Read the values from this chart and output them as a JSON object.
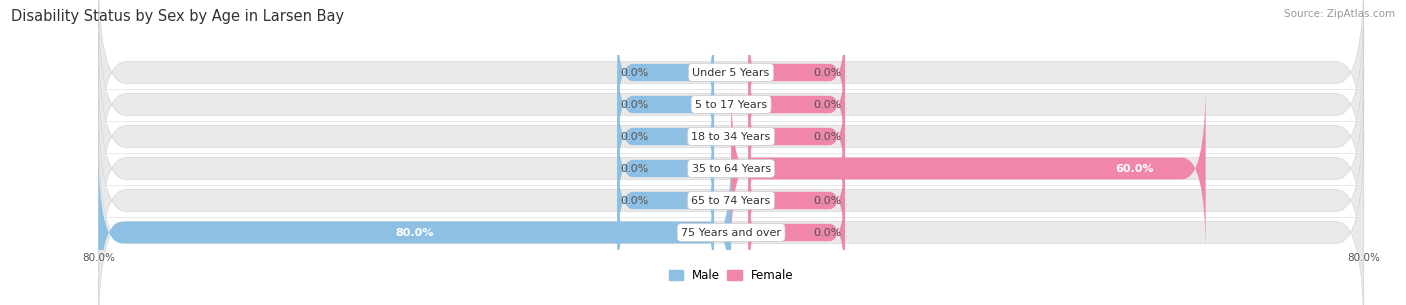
{
  "title": "Disability Status by Sex by Age in Larsen Bay",
  "source": "Source: ZipAtlas.com",
  "categories": [
    "Under 5 Years",
    "5 to 17 Years",
    "18 to 34 Years",
    "35 to 64 Years",
    "65 to 74 Years",
    "75 Years and over"
  ],
  "male_values": [
    0.0,
    0.0,
    0.0,
    0.0,
    0.0,
    80.0
  ],
  "female_values": [
    0.0,
    0.0,
    0.0,
    60.0,
    0.0,
    0.0
  ],
  "male_color": "#8ec0e4",
  "female_color": "#f086a8",
  "bar_bg_color": "#e9e9e9",
  "axis_max": 80.0,
  "label_fontsize": 8.0,
  "title_fontsize": 10.5,
  "legend_fontsize": 8.5,
  "source_fontsize": 7.5
}
